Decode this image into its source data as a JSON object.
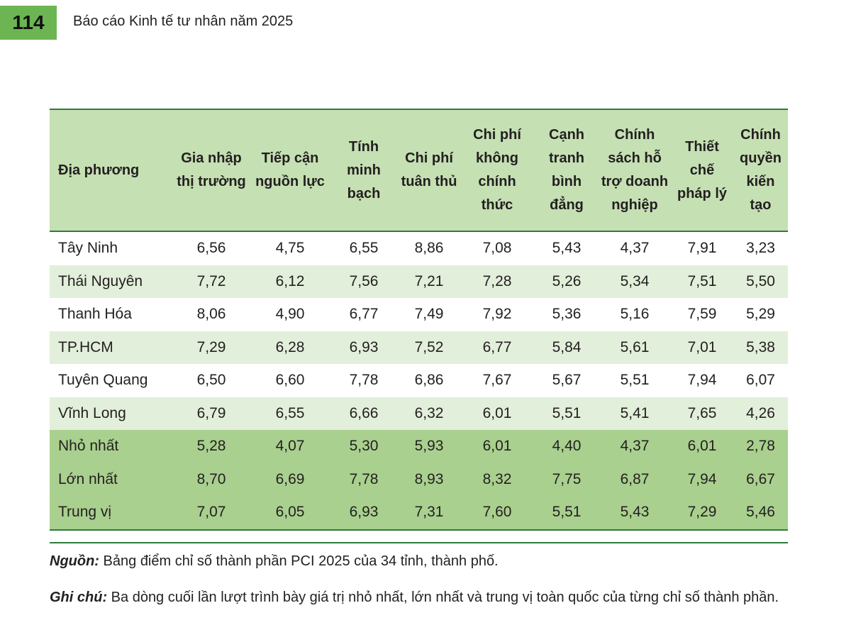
{
  "header": {
    "page_number": "114",
    "title": "Báo cáo Kinh tế tư nhân năm 2025"
  },
  "table": {
    "columns": [
      "Địa phương",
      "Gia nhập thị trường",
      "Tiếp cận nguồn lực",
      "Tính minh bạch",
      "Chi phí tuân thủ",
      "Chi phí không chính thức",
      "Cạnh tranh bình đẳng",
      "Chính sách hỗ trợ doanh nghiệp",
      "Thiết chế pháp lý",
      "Chính quyền kiến tạo"
    ],
    "rows": [
      [
        "Tây Ninh",
        "6,56",
        "4,75",
        "6,55",
        "8,86",
        "7,08",
        "5,43",
        "4,37",
        "7,91",
        "3,23"
      ],
      [
        "Thái Nguyên",
        "7,72",
        "6,12",
        "7,56",
        "7,21",
        "7,28",
        "5,26",
        "5,34",
        "7,51",
        "5,50"
      ],
      [
        "Thanh Hóa",
        "8,06",
        "4,90",
        "6,77",
        "7,49",
        "7,92",
        "5,36",
        "5,16",
        "7,59",
        "5,29"
      ],
      [
        "TP.HCM",
        "7,29",
        "6,28",
        "6,93",
        "7,52",
        "6,77",
        "5,84",
        "5,61",
        "7,01",
        "5,38"
      ],
      [
        "Tuyên Quang",
        "6,50",
        "6,60",
        "7,78",
        "6,86",
        "7,67",
        "5,67",
        "5,51",
        "7,94",
        "6,07"
      ],
      [
        "Vĩnh Long",
        "6,79",
        "6,55",
        "6,66",
        "6,32",
        "6,01",
        "5,51",
        "5,41",
        "7,65",
        "4,26"
      ],
      [
        "Nhỏ nhất",
        "5,28",
        "4,07",
        "5,30",
        "5,93",
        "6,01",
        "4,40",
        "4,37",
        "6,01",
        "2,78"
      ],
      [
        "Lớn nhất",
        "8,70",
        "6,69",
        "7,78",
        "8,93",
        "8,32",
        "7,75",
        "6,87",
        "7,94",
        "6,67"
      ],
      [
        "Trung vị",
        "7,07",
        "6,05",
        "6,93",
        "7,31",
        "7,60",
        "5,51",
        "5,43",
        "7,29",
        "5,46"
      ]
    ]
  },
  "footer": {
    "source_label": "Nguồn:",
    "source_text": "Bảng điểm chỉ số thành phần PCI 2025 của 34 tỉnh, thành phố.",
    "note_label": "Ghi chú:",
    "note_text": "Ba dòng cuối lần lượt trình bày giá trị nhỏ nhất, lớn nhất và trung vị toàn quốc của từng chỉ số thành phần."
  },
  "colors": {
    "accent_green": "#6cb552",
    "header_fill": "#c5e0b3",
    "row_alt_fill": "#e2efda",
    "summary_fill": "#a9d08e",
    "rule_green": "#2f7a3e"
  }
}
